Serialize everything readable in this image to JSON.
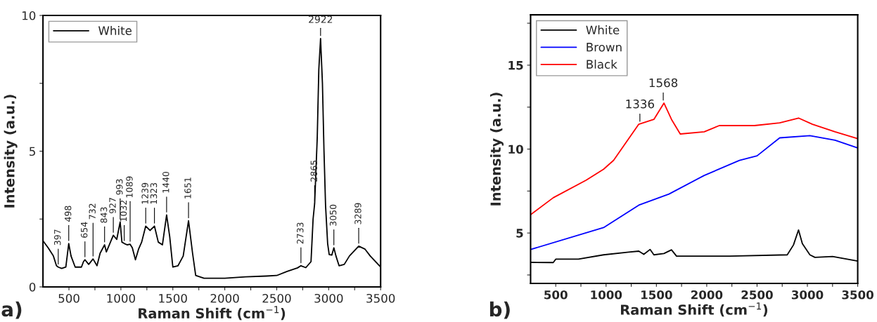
{
  "chart_data": [
    {
      "type": "line",
      "xlabel": "Raman Shift (cm$^{−1}$)",
      "ylabel": "Intensity (a.u.)",
      "xlim": [
        250,
        3500
      ],
      "ylim": [
        0,
        10
      ],
      "xticks": [
        500,
        {
          "value": 750,
          "label": null
        },
        1000,
        {
          "value": 1250,
          "label": null
        },
        1500,
        {
          "value": 1750,
          "label": null
        },
        2000,
        {
          "value": 2250,
          "label": null
        },
        2500,
        {
          "value": 2750,
          "label": null
        },
        3000,
        {
          "value": 3250,
          "label": null
        },
        3500
      ],
      "yticks": [
        0,
        {
          "value": 2.5,
          "label": null
        },
        5,
        {
          "value": 7.5,
          "label": null
        },
        10
      ],
      "legend": "top left",
      "grid": false,
      "series": [
        {
          "name": "White",
          "color": "#000000",
          "x": [
            250,
            300,
            350,
            380,
            397,
            430,
            470,
            498,
            520,
            560,
            620,
            640,
            654,
            690,
            732,
            770,
            800,
            843,
            860,
            927,
            960,
            993,
            1010,
            1032,
            1060,
            1089,
            1110,
            1140,
            1170,
            1200,
            1239,
            1280,
            1323,
            1360,
            1400,
            1440,
            1470,
            1500,
            1550,
            1600,
            1651,
            1690,
            1720,
            1800,
            2000,
            2200,
            2400,
            2500,
            2600,
            2700,
            2733,
            2780,
            2830,
            2850,
            2865,
            2890,
            2905,
            2922,
            2940,
            2955,
            2970,
            2990,
            3005,
            3030,
            3050,
            3070,
            3100,
            3150,
            3200,
            3289,
            3350,
            3400,
            3500
          ],
          "values": [
            1.7,
            1.44,
            1.14,
            0.78,
            0.73,
            0.68,
            0.73,
            1.6,
            1.14,
            0.73,
            0.73,
            0.93,
            1.0,
            0.83,
            1.03,
            0.78,
            1.24,
            1.55,
            1.29,
            1.9,
            1.75,
            2.39,
            1.65,
            1.6,
            1.55,
            1.57,
            1.44,
            1.0,
            1.39,
            1.65,
            2.24,
            2.08,
            2.24,
            1.65,
            1.55,
            2.65,
            1.85,
            0.73,
            0.78,
            1.14,
            2.44,
            1.24,
            0.42,
            0.32,
            0.32,
            0.37,
            0.4,
            0.42,
            0.57,
            0.7,
            0.78,
            0.71,
            0.93,
            2.5,
            3.07,
            5.5,
            8.0,
            9.15,
            7.5,
            5.0,
            3.0,
            1.6,
            1.19,
            1.17,
            1.44,
            1.14,
            0.78,
            0.83,
            1.14,
            1.5,
            1.39,
            1.14,
            0.73
          ]
        }
      ],
      "annotations": [
        {
          "text": "397",
          "x": 397,
          "y": 0.73
        },
        {
          "text": "498",
          "x": 498,
          "y": 1.6
        },
        {
          "text": "654",
          "x": 654,
          "y": 1.0
        },
        {
          "text": "732",
          "x": 732,
          "y": 1.03
        },
        {
          "text": "843",
          "x": 843,
          "y": 1.55
        },
        {
          "text": "927",
          "x": 927,
          "y": 1.9
        },
        {
          "text": "993",
          "x": 993,
          "y": 2.39
        },
        {
          "text": "1032",
          "x": 1032,
          "y": 1.6
        },
        {
          "text": "1089",
          "x": 1089,
          "y": 1.57
        },
        {
          "text": "1239",
          "x": 1239,
          "y": 2.24
        },
        {
          "text": "1323",
          "x": 1323,
          "y": 2.24
        },
        {
          "text": "1440",
          "x": 1440,
          "y": 2.65
        },
        {
          "text": "1651",
          "x": 1651,
          "y": 2.44
        },
        {
          "text": "2733",
          "x": 2733,
          "y": 0.78
        },
        {
          "text": "2865",
          "x": 2865,
          "y": 3.07
        },
        {
          "text": "2922",
          "x": 2922,
          "y": 9.15
        },
        {
          "text": "3050",
          "x": 3050,
          "y": 1.44
        },
        {
          "text": "3289",
          "x": 3289,
          "y": 1.5
        },
        "a)"
      ]
    },
    {
      "type": "line",
      "xlabel": "Raman Shift (cm$^{−1}$)",
      "ylabel": "Intensity (a.u.)",
      "xlim": [
        250,
        3500
      ],
      "ylim": [
        2,
        18
      ],
      "xticks": [
        500,
        {
          "value": 750,
          "label": null
        },
        1000,
        {
          "value": 1250,
          "label": null
        },
        1500,
        {
          "value": 1750,
          "label": null
        },
        2000,
        {
          "value": 2250,
          "label": null
        },
        2500,
        {
          "value": 2750,
          "label": null
        },
        3000,
        {
          "value": 3250,
          "label": null
        },
        3500
      ],
      "yticks": [
        {
          "value": 2.5,
          "label": null
        },
        5,
        {
          "value": 7.5,
          "label": null
        },
        10,
        {
          "value": 12.5,
          "label": null
        },
        15,
        {
          "value": 17.5,
          "label": null
        }
      ],
      "legend": "top left",
      "grid": false,
      "series": [
        {
          "name": "White",
          "color": "#000000",
          "x": [
            250,
            475,
            500,
            725,
            975,
            1225,
            1325,
            1375,
            1437,
            1475,
            1575,
            1650,
            1700,
            2225,
            2800,
            2862,
            2912,
            2950,
            3025,
            3075,
            3250,
            3500
          ],
          "values": [
            3.25,
            3.24,
            3.44,
            3.44,
            3.7,
            3.86,
            3.92,
            3.73,
            4.02,
            3.7,
            3.78,
            4.0,
            3.62,
            3.62,
            3.7,
            4.29,
            5.18,
            4.37,
            3.7,
            3.55,
            3.6,
            3.33
          ]
        },
        {
          "name": "Brown",
          "color": "#0000ff",
          "x": [
            250,
            975,
            1325,
            1625,
            1975,
            2325,
            2500,
            2725,
            3025,
            3275,
            3500
          ],
          "values": [
            4.02,
            5.32,
            6.66,
            7.32,
            8.43,
            9.33,
            9.6,
            10.67,
            10.8,
            10.53,
            10.07
          ]
        },
        {
          "name": "Black",
          "color": "#ff0000",
          "x": [
            250,
            475,
            800,
            975,
            1075,
            1325,
            1475,
            1575,
            1650,
            1737,
            1975,
            2125,
            2475,
            2725,
            2912,
            3050,
            3275,
            3500
          ],
          "values": [
            6.09,
            7.1,
            8.14,
            8.8,
            9.33,
            11.48,
            11.77,
            12.74,
            11.77,
            10.9,
            11.03,
            11.4,
            11.4,
            11.56,
            11.85,
            11.48,
            11.03,
            10.62
          ]
        }
      ],
      "annotations": [
        {
          "text": "1336",
          "x": 1336,
          "y": 11.48
        },
        {
          "text": "1568",
          "x": 1568,
          "y": 12.74
        },
        "b)"
      ]
    }
  ]
}
